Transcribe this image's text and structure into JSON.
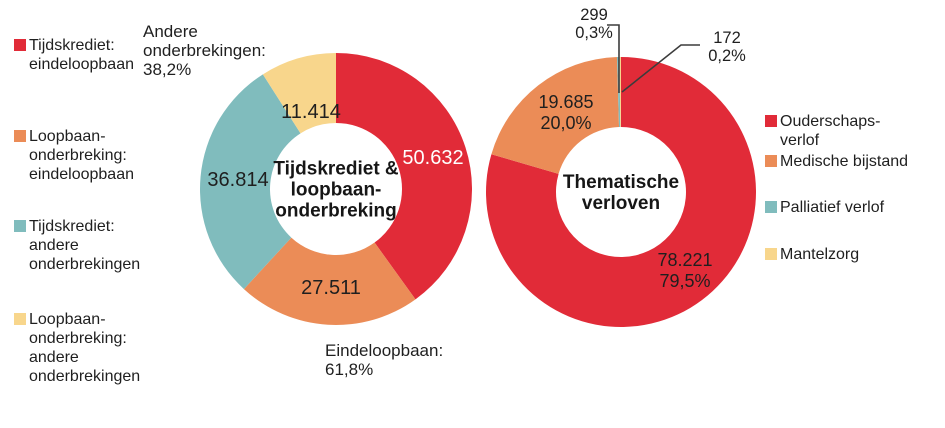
{
  "page": {
    "background": "#ffffff"
  },
  "colors": {
    "red": "#e12b38",
    "orange": "#eb8c57",
    "teal": "#80bcbd",
    "yellow": "#f8d68c",
    "text": "#1f1f1f",
    "white_label": "#ffffff",
    "callout_line": "#3c3c3c"
  },
  "left_chart": {
    "center_lines": [
      "Tijdskrediet &",
      "loopbaan-",
      "onderbreking"
    ],
    "annotation_top_lines": [
      "Andere",
      "onderbrekingen:",
      "38,2%"
    ],
    "annotation_bottom_lines": [
      "Eindeloopbaan:",
      "61,8%"
    ],
    "legend": {
      "item1_lines": [
        "Tijdskrediet:",
        "eindeloopbaan"
      ],
      "item2_lines": [
        "Loopbaan-",
        "onderbreking:",
        "eindeloopbaan"
      ],
      "item3_lines": [
        "Tijdskrediet:",
        "andere",
        "onderbrekingen"
      ],
      "item4_lines": [
        "Loopbaan-",
        "onderbreking:",
        "andere",
        "onderbrekingen"
      ]
    }
  },
  "right_chart": {
    "center_lines": [
      "Thematische",
      "verloven"
    ],
    "legend": {
      "item1_lines": [
        "Ouderschaps-",
        "verlof"
      ],
      "item2_lines": [
        "Medische bijstand"
      ],
      "item3_lines": [
        "Palliatief verlof"
      ],
      "item4_lines": [
        "Mantelzorg"
      ]
    }
  },
  "chart_data": [
    {
      "type": "pie",
      "subtype": "donut",
      "title": "Tijdskrediet & loopbaan-onderbreking",
      "categories": [
        "Tijdskrediet: eindeloopbaan",
        "Loopbaan-onderbreking: eindeloopbaan",
        "Tijdskrediet: andere onderbrekingen",
        "Loopbaan-onderbreking: andere onderbrekingen"
      ],
      "values": [
        50632,
        27511,
        36814,
        11414
      ],
      "value_labels": [
        "50.632",
        "27.511",
        "36.814",
        "11.414"
      ],
      "colors": [
        "#e12b38",
        "#eb8c57",
        "#80bcbd",
        "#f8d68c"
      ],
      "start_angle_deg": 0,
      "direction": "clockwise",
      "legend_position": "left",
      "annotations": [
        {
          "text": "Andere onderbrekingen: 38,2%",
          "applies_to": [
            "Tijdskrediet: andere onderbrekingen",
            "Loopbaan-onderbreking: andere onderbrekingen"
          ]
        },
        {
          "text": "Eindeloopbaan: 61,8%",
          "applies_to": [
            "Tijdskrediet: eindeloopbaan",
            "Loopbaan-onderbreking: eindeloopbaan"
          ]
        }
      ]
    },
    {
      "type": "pie",
      "subtype": "donut",
      "title": "Thematische verloven",
      "categories": [
        "Ouderschapsverlof",
        "Medische bijstand",
        "Palliatief verlof",
        "Mantelzorg"
      ],
      "values": [
        78221,
        19685,
        299,
        172
      ],
      "value_labels": [
        "78.221",
        "19.685",
        "299",
        "172"
      ],
      "percent_labels": [
        "79,5%",
        "20,0%",
        "0,3%",
        "0,2%"
      ],
      "colors": [
        "#e12b38",
        "#eb8c57",
        "#80bcbd",
        "#f8d68c"
      ],
      "start_angle_deg": 0,
      "direction": "clockwise",
      "legend_position": "right"
    }
  ]
}
